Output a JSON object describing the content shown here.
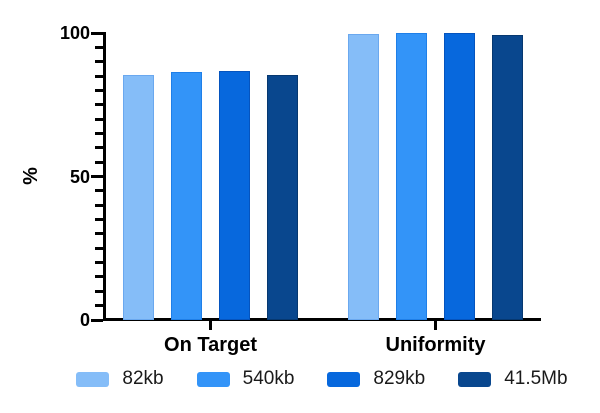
{
  "chart_data": {
    "type": "bar",
    "title": "",
    "xlabel": "",
    "ylabel": "%",
    "categories": [
      "On Target",
      "Uniformity"
    ],
    "series": [
      {
        "name": "82kb",
        "color": "#85BDF8",
        "border_color": "#6AA8EF",
        "values": [
          85.4,
          99.7
        ]
      },
      {
        "name": "540kb",
        "color": "#3394F8",
        "border_color": "#1F7FE8",
        "values": [
          86.4,
          99.9
        ]
      },
      {
        "name": "829kb",
        "color": "#0768DD",
        "border_color": "#0554BE",
        "values": [
          86.8,
          100
        ]
      },
      {
        "name": "41.5Mb",
        "color": "#09478E",
        "border_color": "#063870",
        "values": [
          85.4,
          99.4
        ]
      }
    ],
    "ylim": [
      0,
      100
    ],
    "yticks_major": [
      0,
      50,
      100
    ],
    "ytick_minor_step": 5,
    "grid": false,
    "legend_position": "bottom",
    "axis_color": "#000000",
    "text_color": "#000000"
  }
}
